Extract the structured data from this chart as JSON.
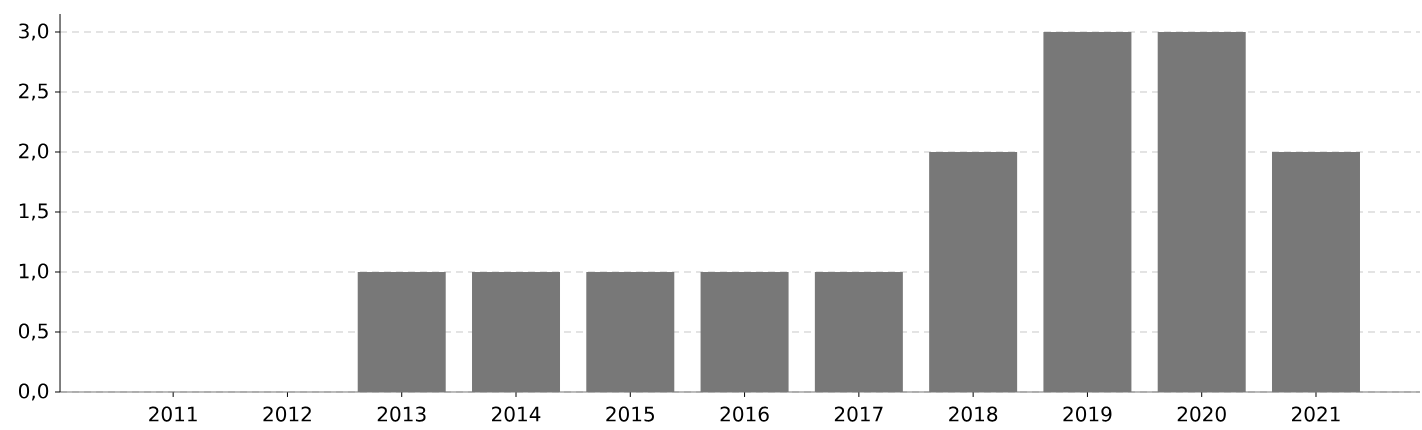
{
  "chart_data": {
    "type": "bar",
    "categories": [
      "2011",
      "2012",
      "2013",
      "2014",
      "2015",
      "2016",
      "2017",
      "2018",
      "2019",
      "2020",
      "2021"
    ],
    "values": [
      0,
      0,
      1,
      1,
      1,
      1,
      1,
      2,
      3,
      3,
      2
    ],
    "color": "#787878",
    "ylim": [
      0,
      3.15
    ],
    "yticks": [
      {
        "value": 0,
        "label": "0,0"
      },
      {
        "value": 0.5,
        "label": "0,5"
      },
      {
        "value": 1,
        "label": "1,0"
      },
      {
        "value": 1.5,
        "label": "1,5"
      },
      {
        "value": 2,
        "label": "2,0"
      },
      {
        "value": 2.5,
        "label": "2,5"
      },
      {
        "value": 3,
        "label": "3,0"
      }
    ],
    "grid": "y"
  }
}
